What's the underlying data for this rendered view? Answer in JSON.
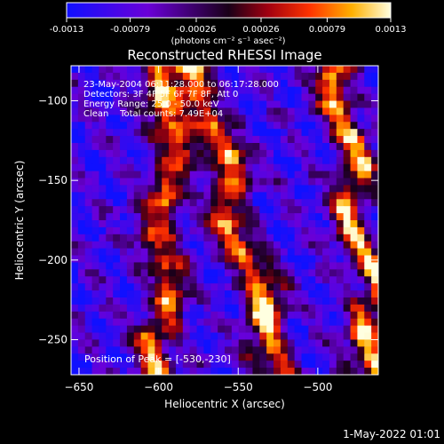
{
  "chart_data": {
    "type": "heatmap",
    "title": "Reconstructed RHESSI Image",
    "xlabel": "Heliocentric X (arcsec)",
    "ylabel": "Heliocentric Y (arcsec)",
    "xlim": [
      -655,
      -462
    ],
    "ylim": [
      -272,
      -78
    ],
    "xticks": [
      -650,
      -600,
      -550,
      -500
    ],
    "yticks": [
      -100,
      -150,
      -200,
      -250
    ],
    "colorbar": {
      "min": -0.0013,
      "max": 0.0013,
      "tick_values": [
        -0.0013,
        -0.00079,
        -0.00026,
        0.00026,
        0.00079,
        0.0013
      ],
      "tick_labels": [
        "-0.0013",
        "-0.00079",
        "-0.00026",
        "0.00026",
        "0.00079",
        "0.0013"
      ],
      "units_label": "(photons cm⁻² s⁻¹ asec⁻²)"
    },
    "annotations": [
      "23-May-2004 06:11:28.000 to 06:17:28.000",
      "Detectors: 3F 4F 5F 6F 7F 8F, Att 0",
      "Energy Range: 25.0 - 50.0 keV",
      "Clean    Total counts: 7.49E+04"
    ],
    "peak_label": "Position of Peak = [-530,-230]",
    "peak_position": [
      -530,
      -230
    ],
    "ridges": [
      {
        "x_top": -593,
        "x_bottom": -598,
        "amplitude": 0.0011
      },
      {
        "x_top": -578,
        "x_bottom": -523,
        "amplitude": 0.0013
      },
      {
        "x_top": -488,
        "x_bottom": -463,
        "amplitude": 0.0012
      }
    ]
  },
  "timestamp": "1-May-2022 01:01"
}
